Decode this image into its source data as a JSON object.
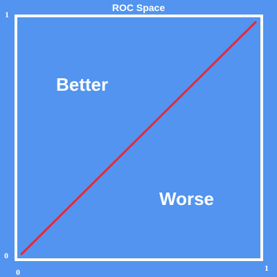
{
  "title": "ROC Space",
  "axis": {
    "y_max_label": "1",
    "y_min_label": "0",
    "x_min_label": "0",
    "x_max_label": "1"
  },
  "regions": {
    "upper_left": "Better",
    "lower_right": "Worse"
  },
  "colors": {
    "background": "#5294ef",
    "frame": "#ffffff",
    "diagonal": "#e8273a"
  }
}
